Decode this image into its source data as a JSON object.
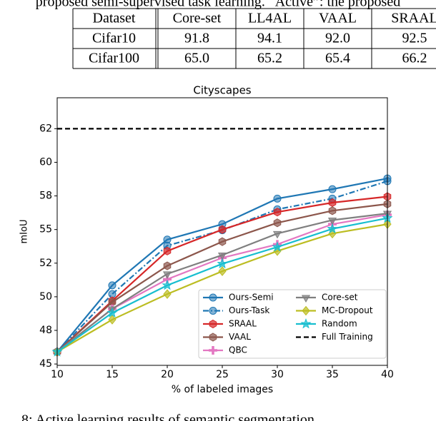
{
  "caption_top": "proposed semi-supervised task learning. “Active”: the proposed",
  "table": {
    "header": [
      "Dataset",
      "Core-set",
      "LL4AL",
      "VAAL",
      "SRAAL"
    ],
    "rows": [
      [
        "Cifar10",
        "91.8",
        "94.1",
        "92.0",
        "92.5"
      ],
      [
        "Cifar100",
        "65.0",
        "65.2",
        "65.4",
        "66.2"
      ]
    ]
  },
  "chart_data": {
    "type": "line",
    "title": "Cityscapes",
    "x_label": "% of labeled images",
    "y_label": "mIoU",
    "x": [
      10,
      15,
      20,
      25,
      30,
      35,
      40
    ],
    "xlim": [
      10,
      40
    ],
    "xticks": [
      10,
      15,
      20,
      25,
      30,
      35,
      40
    ],
    "ylim": [
      44.9,
      64.8
    ],
    "yticks": [
      {
        "value": 45,
        "label": "45"
      },
      {
        "value": 47.5,
        "label": "48"
      },
      {
        "value": 50,
        "label": "50"
      },
      {
        "value": 52.5,
        "label": "52"
      },
      {
        "value": 55,
        "label": "55"
      },
      {
        "value": 57.5,
        "label": "58"
      },
      {
        "value": 60,
        "label": "60"
      },
      {
        "value": 62.5,
        "label": "62"
      }
    ],
    "legend": "lower right",
    "series": [
      {
        "name": "Ours-Semi",
        "color": "#1f77b4",
        "marker": "circle",
        "linestyle": "solid",
        "values": [
          45.9,
          50.85,
          54.25,
          55.4,
          57.3,
          58.0,
          58.8
        ]
      },
      {
        "name": "Ours-Task",
        "color": "#1f77b4",
        "marker": "circle",
        "linestyle": "dashdot",
        "values": [
          45.9,
          50.2,
          53.8,
          54.95,
          56.5,
          57.3,
          58.6
        ]
      },
      {
        "name": "SRAAL",
        "color": "#d62728",
        "marker": "hexagon",
        "linestyle": "solid",
        "values": [
          45.9,
          49.7,
          53.4,
          55.0,
          56.3,
          57.0,
          57.45
        ]
      },
      {
        "name": "VAAL",
        "color": "#8c564b",
        "marker": "hexagon",
        "linestyle": "solid",
        "values": [
          45.9,
          49.6,
          52.3,
          54.1,
          55.5,
          56.4,
          56.9
        ]
      },
      {
        "name": "QBC",
        "color": "#e377c2",
        "marker": "plus",
        "linestyle": "solid",
        "values": [
          45.9,
          49.1,
          51.3,
          52.9,
          53.9,
          55.4,
          56.1
        ]
      },
      {
        "name": "Core-set",
        "color": "#7f7f7f",
        "marker": "triangle-down",
        "linestyle": "solid",
        "values": [
          45.9,
          49.1,
          51.7,
          53.1,
          54.7,
          55.7,
          56.2
        ]
      },
      {
        "name": "MC-Dropout",
        "color": "#bcbd22",
        "marker": "diamond",
        "linestyle": "solid",
        "values": [
          45.9,
          48.3,
          50.2,
          51.9,
          53.4,
          54.7,
          55.4
        ]
      },
      {
        "name": "Random",
        "color": "#17becf",
        "marker": "star",
        "linestyle": "solid",
        "values": [
          45.9,
          48.8,
          50.85,
          52.45,
          53.7,
          55.05,
          55.85
        ]
      },
      {
        "name": "Full Training",
        "color": "#000000",
        "marker": "none",
        "linestyle": "dashed",
        "values": [
          62.5,
          62.5,
          62.5,
          62.5,
          62.5,
          62.5,
          62.5
        ]
      }
    ]
  },
  "caption_bottom": "8: Active learning results of semantic segmentation"
}
